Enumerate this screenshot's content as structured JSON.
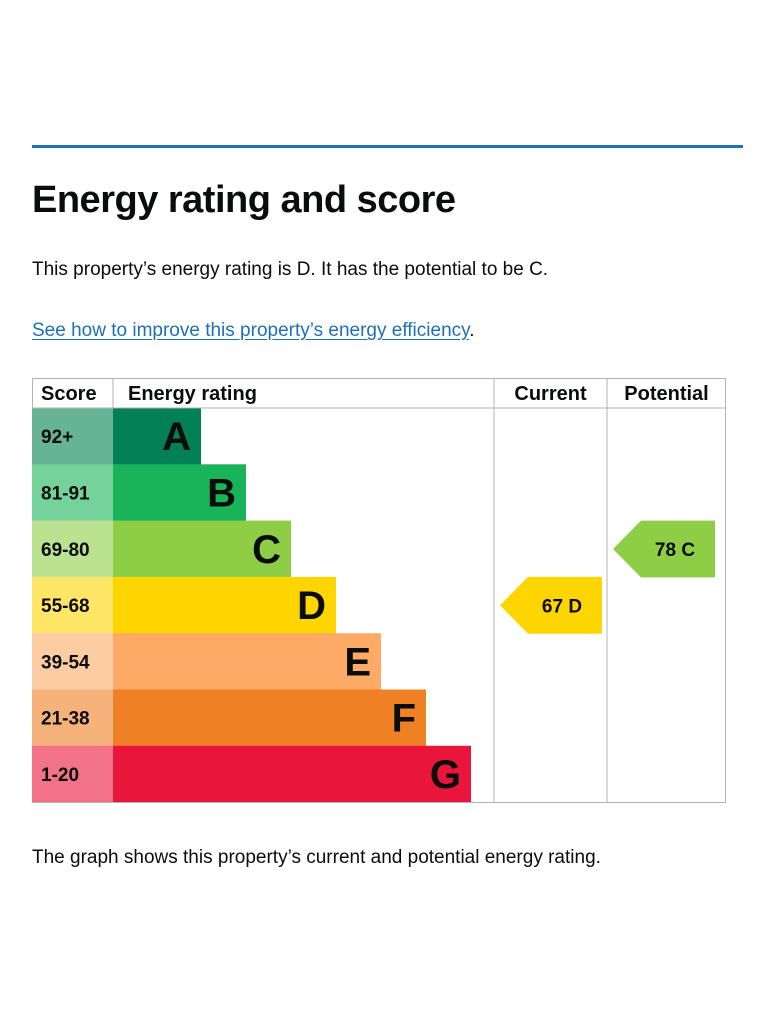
{
  "page": {
    "heading": "Energy rating and score",
    "summary": "This property’s energy rating is D. It has the potential to be C.",
    "improve_link": "See how to improve this property’s energy efficiency",
    "improve_suffix": ".",
    "caption": "The graph shows this property’s current and potential energy rating."
  },
  "chart_data": {
    "type": "bar",
    "columns": {
      "score": "Score",
      "rating": "Energy rating",
      "current": "Current",
      "potential": "Potential"
    },
    "bands": [
      {
        "letter": "A",
        "score": "92+",
        "bar_color": "#008054",
        "score_color": "#66b398"
      },
      {
        "letter": "B",
        "score": "81-91",
        "bar_color": "#19b459",
        "score_color": "#75d29b"
      },
      {
        "letter": "C",
        "score": "69-80",
        "bar_color": "#8dce46",
        "score_color": "#bbe290"
      },
      {
        "letter": "D",
        "score": "55-68",
        "bar_color": "#ffd500",
        "score_color": "#ffe666"
      },
      {
        "letter": "E",
        "score": "39-54",
        "bar_color": "#fcaa65",
        "score_color": "#fdcca3"
      },
      {
        "letter": "F",
        "score": "21-38",
        "bar_color": "#ef8023",
        "score_color": "#f5b37b"
      },
      {
        "letter": "G",
        "score": "1-20",
        "bar_color": "#e9153b",
        "score_color": "#f27389"
      }
    ],
    "current": {
      "value": 67,
      "band": "D",
      "color": "#ffd500"
    },
    "potential": {
      "value": 78,
      "band": "C",
      "color": "#8dce46"
    }
  }
}
